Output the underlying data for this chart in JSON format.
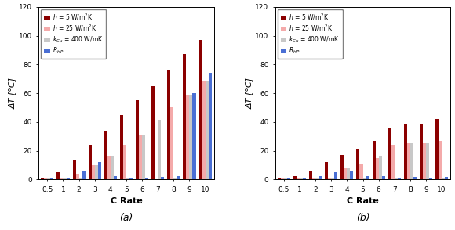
{
  "c_rates_labels": [
    "0.5",
    "1",
    "2",
    "3",
    "4",
    "5",
    "6",
    "7",
    "8",
    "9",
    "10"
  ],
  "chart_a": {
    "h5": [
      1.5,
      5,
      14,
      24,
      34,
      45,
      55,
      65,
      76,
      87,
      97
    ],
    "h25": [
      0.5,
      0.5,
      4,
      10,
      16,
      24,
      31,
      0,
      50,
      59,
      68
    ],
    "kCu": [
      0.5,
      0.5,
      0.5,
      10,
      16,
      0.5,
      31,
      41,
      0.5,
      59,
      68
    ],
    "Rhp": [
      0.5,
      1.5,
      5.5,
      12,
      2.5,
      1.5,
      1.5,
      2,
      2.5,
      60,
      74
    ]
  },
  "chart_b": {
    "h5": [
      0.5,
      2.5,
      6,
      12,
      17,
      21,
      27,
      36,
      38,
      39,
      42
    ],
    "h25": [
      0.5,
      0.5,
      0.5,
      0.5,
      8,
      11,
      15,
      24,
      25,
      25,
      27
    ],
    "kCu": [
      0.5,
      0.5,
      0.5,
      0.5,
      8,
      0.5,
      16,
      0.5,
      25,
      25,
      0.5
    ],
    "Rhp": [
      0.5,
      1,
      2.5,
      5,
      5.5,
      2.5,
      2.5,
      1.5,
      2,
      1.5,
      2
    ]
  },
  "colors": {
    "h5": "#8B0000",
    "h25": "#F4AAAA",
    "kCu": "#C8C8C8",
    "Rhp": "#4A6FD4"
  },
  "ylim": [
    0,
    120
  ],
  "yticks": [
    0,
    20,
    40,
    60,
    80,
    100,
    120
  ],
  "ylabel": "ΔT [°C]",
  "xlabel": "C Rate",
  "subplot_labels": [
    "(a)",
    "(b)"
  ]
}
